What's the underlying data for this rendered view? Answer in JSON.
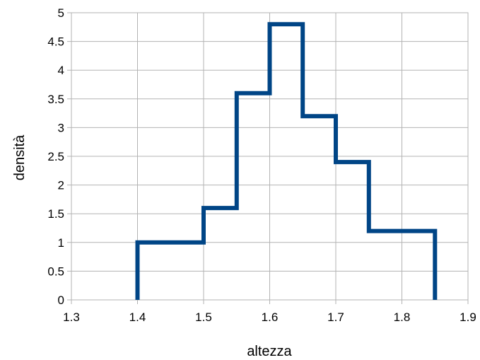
{
  "chart_data": {
    "type": "line",
    "step": true,
    "title": "",
    "xlabel": "altezza",
    "ylabel": "densità",
    "xlim": [
      1.3,
      1.9
    ],
    "ylim": [
      0,
      5
    ],
    "xticks": [
      "1.3",
      "1.4",
      "1.5",
      "1.6",
      "1.7",
      "1.8",
      "1.9"
    ],
    "yticks": [
      "0",
      "0.5",
      "1",
      "1.5",
      "2",
      "2.5",
      "3",
      "3.5",
      "4",
      "4.5",
      "5"
    ],
    "grid": true,
    "legend": "none",
    "series": [
      {
        "color": "#004586",
        "x": [
          1.4,
          1.4,
          1.5,
          1.5,
          1.55,
          1.55,
          1.6,
          1.6,
          1.65,
          1.65,
          1.7,
          1.7,
          1.75,
          1.75,
          1.85,
          1.85
        ],
        "y": [
          0,
          1,
          1,
          1.6,
          1.6,
          3.6,
          3.6,
          4.8,
          4.8,
          3.2,
          3.2,
          2.4,
          2.4,
          1.2,
          1.2,
          0
        ]
      }
    ]
  }
}
